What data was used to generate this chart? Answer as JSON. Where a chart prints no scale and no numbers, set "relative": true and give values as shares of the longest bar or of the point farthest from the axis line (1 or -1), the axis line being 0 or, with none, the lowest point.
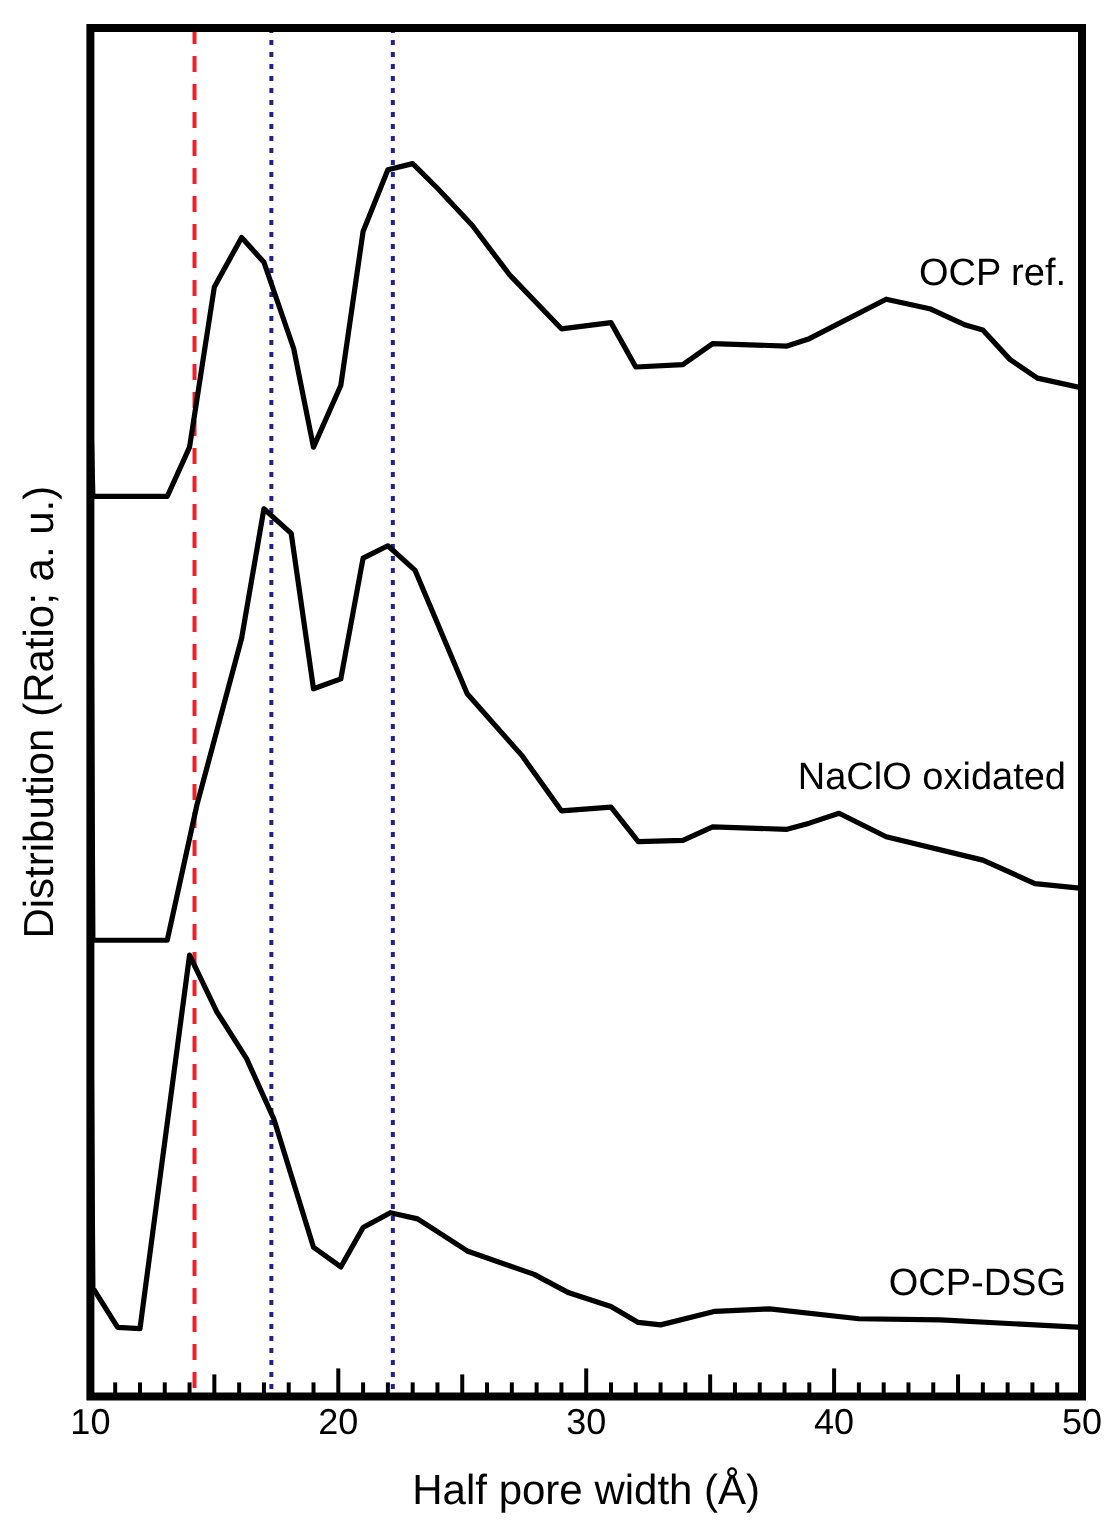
{
  "chart_data": {
    "type": "line",
    "relative": true,
    "xlabel": "Half pore width (Å)",
    "ylabel": "Distribution (Ratio; a. u.)",
    "xlim": [
      10,
      50
    ],
    "xticks": [
      10,
      {
        "value": 11,
        "label": null
      },
      {
        "value": 12,
        "label": null
      },
      {
        "value": 13,
        "label": null
      },
      {
        "value": 14,
        "label": null
      },
      {
        "value": 15,
        "label": null
      },
      {
        "value": 16,
        "label": null
      },
      {
        "value": 17,
        "label": null
      },
      {
        "value": 18,
        "label": null
      },
      {
        "value": 19,
        "label": null
      },
      20,
      {
        "value": 21,
        "label": null
      },
      {
        "value": 22,
        "label": null
      },
      {
        "value": 23,
        "label": null
      },
      {
        "value": 24,
        "label": null
      },
      {
        "value": 25,
        "label": null
      },
      {
        "value": 26,
        "label": null
      },
      {
        "value": 27,
        "label": null
      },
      {
        "value": 28,
        "label": null
      },
      {
        "value": 29,
        "label": null
      },
      30,
      {
        "value": 31,
        "label": null
      },
      {
        "value": 32,
        "label": null
      },
      {
        "value": 33,
        "label": null
      },
      {
        "value": 34,
        "label": null
      },
      {
        "value": 35,
        "label": null
      },
      {
        "value": 36,
        "label": null
      },
      {
        "value": 37,
        "label": null
      },
      {
        "value": 38,
        "label": null
      },
      {
        "value": 39,
        "label": null
      },
      40,
      {
        "value": 41,
        "label": null
      },
      {
        "value": 42,
        "label": null
      },
      {
        "value": 43,
        "label": null
      },
      {
        "value": 44,
        "label": null
      },
      {
        "value": 45,
        "label": null
      },
      {
        "value": 46,
        "label": null
      },
      {
        "value": 47,
        "label": null
      },
      {
        "value": 48,
        "label": null
      },
      {
        "value": 49,
        "label": null
      },
      50
    ],
    "tick_labels": "x",
    "grid": false,
    "legend": false,
    "marker": "none",
    "line_style": "solid",
    "series": [
      {
        "name": "OCP ref.",
        "color": "#000000",
        "x": [
          10,
          10.1,
          13.1,
          14.0,
          15.0,
          16.1,
          17.0,
          18.2,
          19.0,
          20.1,
          21.0,
          22.0,
          23.0,
          24.0,
          25.4,
          26.9,
          29.0,
          31.0,
          32.0,
          33.9,
          35.1,
          38.1,
          39.0,
          42.1,
          43.9,
          45.3,
          46.0,
          47.1,
          48.2,
          50
        ],
        "values": [
          0.81,
          0.73,
          0.73,
          0.77,
          0.9,
          0.94,
          0.92,
          0.85,
          0.77,
          0.82,
          0.945,
          0.995,
          1.0,
          0.98,
          0.95,
          0.91,
          0.866,
          0.871,
          0.835,
          0.837,
          0.854,
          0.852,
          0.858,
          0.89,
          0.882,
          0.869,
          0.865,
          0.841,
          0.826,
          0.818
        ]
      },
      {
        "name": "NaClO oxidated",
        "color": "#000000",
        "x": [
          10,
          10.1,
          13.1,
          14.3,
          16.1,
          17.0,
          18.1,
          19.0,
          20.1,
          21.0,
          22.0,
          23.1,
          25.2,
          27.4,
          29.0,
          31.0,
          32.1,
          33.9,
          35.1,
          38.1,
          39.0,
          40.2,
          42.1,
          46.0,
          48.1,
          50
        ],
        "values": [
          0.76,
          0.37,
          0.37,
          0.48,
          0.615,
          0.72,
          0.7,
          0.574,
          0.582,
          0.68,
          0.69,
          0.67,
          0.57,
          0.52,
          0.475,
          0.478,
          0.45,
          0.451,
          0.462,
          0.46,
          0.465,
          0.473,
          0.454,
          0.435,
          0.416,
          0.412
        ]
      },
      {
        "name": "OCP-DSG",
        "color": "#000000",
        "x": [
          10,
          10.1,
          11.1,
          12.0,
          14.0,
          15.1,
          16.3,
          17.4,
          19.0,
          20.1,
          21.0,
          22.1,
          23.2,
          25.2,
          27.9,
          29.3,
          31.0,
          32.1,
          33.0,
          35.2,
          37.4,
          41.0,
          44.3,
          50
        ],
        "values": [
          0.38,
          0.088,
          0.056,
          0.055,
          0.358,
          0.312,
          0.274,
          0.225,
          0.121,
          0.105,
          0.137,
          0.149,
          0.144,
          0.118,
          0.099,
          0.084,
          0.073,
          0.06,
          0.058,
          0.069,
          0.071,
          0.063,
          0.062,
          0.056
        ]
      }
    ],
    "ref_lines": [
      {
        "axis": "x",
        "value": 14.2,
        "color": "#e8212b",
        "line_style": "dashed"
      },
      {
        "axis": "x",
        "value": 17.3,
        "color": "#22228f",
        "line_style": "dotted"
      },
      {
        "axis": "x",
        "value": 22.2,
        "color": "#22228f",
        "line_style": "dotted"
      }
    ]
  }
}
